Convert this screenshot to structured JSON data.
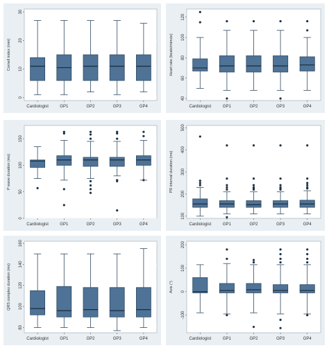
{
  "chart_data": [
    {
      "type": "box",
      "title": "",
      "ylabel": "Cornell index (mm)",
      "xlabel": "",
      "categories": [
        "Cardiologist",
        "GP1",
        "GP2",
        "GP3",
        "GP4"
      ],
      "ylim": [
        -1,
        31
      ],
      "yticks": [
        0,
        10,
        20,
        30
      ],
      "grid": true,
      "boxes": [
        {
          "min": 1,
          "q1": 6,
          "median": 11,
          "q3": 14,
          "max": 27,
          "outliers": []
        },
        {
          "min": 1,
          "q1": 6,
          "median": 10.5,
          "q3": 15,
          "max": 27,
          "outliers": []
        },
        {
          "min": 2,
          "q1": 6,
          "median": 11,
          "q3": 15,
          "max": 27,
          "outliers": []
        },
        {
          "min": 1,
          "q1": 6,
          "median": 11,
          "q3": 15,
          "max": 27,
          "outliers": []
        },
        {
          "min": 2,
          "q1": 6,
          "median": 11,
          "q3": 15,
          "max": 26,
          "outliers": []
        }
      ]
    },
    {
      "type": "box",
      "title": "",
      "ylabel": "Heart rate (beats/minute)",
      "xlabel": "",
      "categories": [
        "Cardiologist",
        "GP1",
        "GP2",
        "GP3",
        "GP4"
      ],
      "ylim": [
        38,
        128
      ],
      "yticks": [
        40,
        60,
        80,
        100,
        120
      ],
      "grid": true,
      "boxes": [
        {
          "min": 50,
          "q1": 67,
          "median": 70,
          "q3": 79,
          "max": 100,
          "outliers": [
            115,
            125
          ]
        },
        {
          "min": 48,
          "q1": 66,
          "median": 72,
          "q3": 82,
          "max": 107,
          "outliers": [
            116,
            40
          ]
        },
        {
          "min": 48,
          "q1": 66,
          "median": 72,
          "q3": 82,
          "max": 107,
          "outliers": [
            116
          ]
        },
        {
          "min": 48,
          "q1": 66,
          "median": 72,
          "q3": 82,
          "max": 107,
          "outliers": [
            116,
            40
          ]
        },
        {
          "min": 48,
          "q1": 67,
          "median": 73,
          "q3": 81,
          "max": 100,
          "outliers": [
            116,
            107
          ]
        }
      ]
    },
    {
      "type": "box",
      "title": "",
      "ylabel": "P wave duration (ms)",
      "xlabel": "",
      "categories": [
        "Cardiologist",
        "GP1",
        "GP2",
        "GP3",
        "GP4"
      ],
      "ylim": [
        0,
        175
      ],
      "yticks": [
        0,
        50,
        100,
        150
      ],
      "grid": true,
      "boxes": [
        {
          "min": 75,
          "q1": 96,
          "median": 108,
          "q3": 110,
          "max": 135,
          "outliers": [
            57
          ]
        },
        {
          "min": 72,
          "q1": 100,
          "median": 110,
          "q3": 118,
          "max": 147,
          "outliers": [
            160,
            163,
            55,
            25
          ]
        },
        {
          "min": 75,
          "q1": 98,
          "median": 110,
          "q3": 115,
          "max": 145,
          "outliers": [
            150,
            158,
            163,
            70,
            62,
            55,
            48
          ]
        },
        {
          "min": 80,
          "q1": 98,
          "median": 110,
          "q3": 115,
          "max": 145,
          "outliers": [
            150,
            160,
            163,
            72,
            70,
            15
          ]
        },
        {
          "min": 72,
          "q1": 100,
          "median": 110,
          "q3": 118,
          "max": 147,
          "outliers": [
            155,
            163,
            72
          ]
        }
      ]
    },
    {
      "type": "box",
      "title": "",
      "ylabel": "PR interval duration (ms)",
      "xlabel": "",
      "categories": [
        "Cardiologist",
        "GP1",
        "GP2",
        "GP3",
        "GP4"
      ],
      "ylim": [
        90,
        510
      ],
      "yticks": [
        100,
        200,
        300,
        400,
        500
      ],
      "grid": true,
      "boxes": [
        {
          "min": 100,
          "q1": 140,
          "median": 155,
          "q3": 178,
          "max": 230,
          "outliers": [
            240,
            250,
            260,
            460
          ]
        },
        {
          "min": 110,
          "q1": 140,
          "median": 155,
          "q3": 170,
          "max": 210,
          "outliers": [
            220,
            230,
            240,
            270,
            420,
            95
          ]
        },
        {
          "min": 110,
          "q1": 140,
          "median": 152,
          "q3": 170,
          "max": 210,
          "outliers": [
            220,
            225,
            230,
            240,
            270,
            420
          ]
        },
        {
          "min": 110,
          "q1": 140,
          "median": 155,
          "q3": 170,
          "max": 210,
          "outliers": [
            220,
            225,
            230,
            240,
            270,
            420
          ]
        },
        {
          "min": 110,
          "q1": 140,
          "median": 155,
          "q3": 172,
          "max": 215,
          "outliers": [
            225,
            230,
            240,
            250,
            270,
            420
          ]
        }
      ]
    },
    {
      "type": "box",
      "title": "",
      "ylabel": "QRS complex duration (ms)",
      "xlabel": "",
      "categories": [
        "Cardiologist",
        "GP1",
        "GP2",
        "GP3",
        "GP4"
      ],
      "ylim": [
        75,
        162
      ],
      "yticks": [
        80,
        100,
        120,
        140,
        160
      ],
      "grid": true,
      "boxes": [
        {
          "min": 80,
          "q1": 92,
          "median": 98,
          "q3": 115,
          "max": 150,
          "outliers": []
        },
        {
          "min": 80,
          "q1": 90,
          "median": 96,
          "q3": 119,
          "max": 150,
          "outliers": []
        },
        {
          "min": 80,
          "q1": 90,
          "median": 97,
          "q3": 118,
          "max": 150,
          "outliers": []
        },
        {
          "min": 77,
          "q1": 90,
          "median": 96,
          "q3": 118,
          "max": 150,
          "outliers": []
        },
        {
          "min": 80,
          "q1": 90,
          "median": 97,
          "q3": 118,
          "max": 155,
          "outliers": []
        }
      ]
    },
    {
      "type": "box",
      "title": "",
      "ylabel": "Axis (°)",
      "xlabel": "",
      "categories": [
        "Cardiologist",
        "GP1",
        "GP2",
        "GP3",
        "GP4"
      ],
      "ylim": [
        -175,
        215
      ],
      "yticks": [
        -100,
        0,
        100,
        200
      ],
      "ytick_labels": [
        "-100",
        "0",
        "100",
        "200"
      ],
      "grid": true,
      "boxes": [
        {
          "min": -90,
          "q1": -5,
          "median": 0,
          "q3": 60,
          "max": 115,
          "outliers": []
        },
        {
          "min": -95,
          "q1": -5,
          "median": 5,
          "q3": 35,
          "max": 120,
          "outliers": [
            140,
            180,
            -100
          ]
        },
        {
          "min": -90,
          "q1": -5,
          "median": 8,
          "q3": 35,
          "max": 115,
          "outliers": [
            125,
            135,
            -150
          ]
        },
        {
          "min": -95,
          "q1": -5,
          "median": 5,
          "q3": 30,
          "max": 115,
          "outliers": [
            125,
            140,
            160,
            180,
            -120,
            -155
          ]
        },
        {
          "min": -95,
          "q1": -5,
          "median": 5,
          "q3": 30,
          "max": 115,
          "outliers": [
            125,
            140,
            160,
            180,
            -100
          ]
        }
      ]
    }
  ]
}
